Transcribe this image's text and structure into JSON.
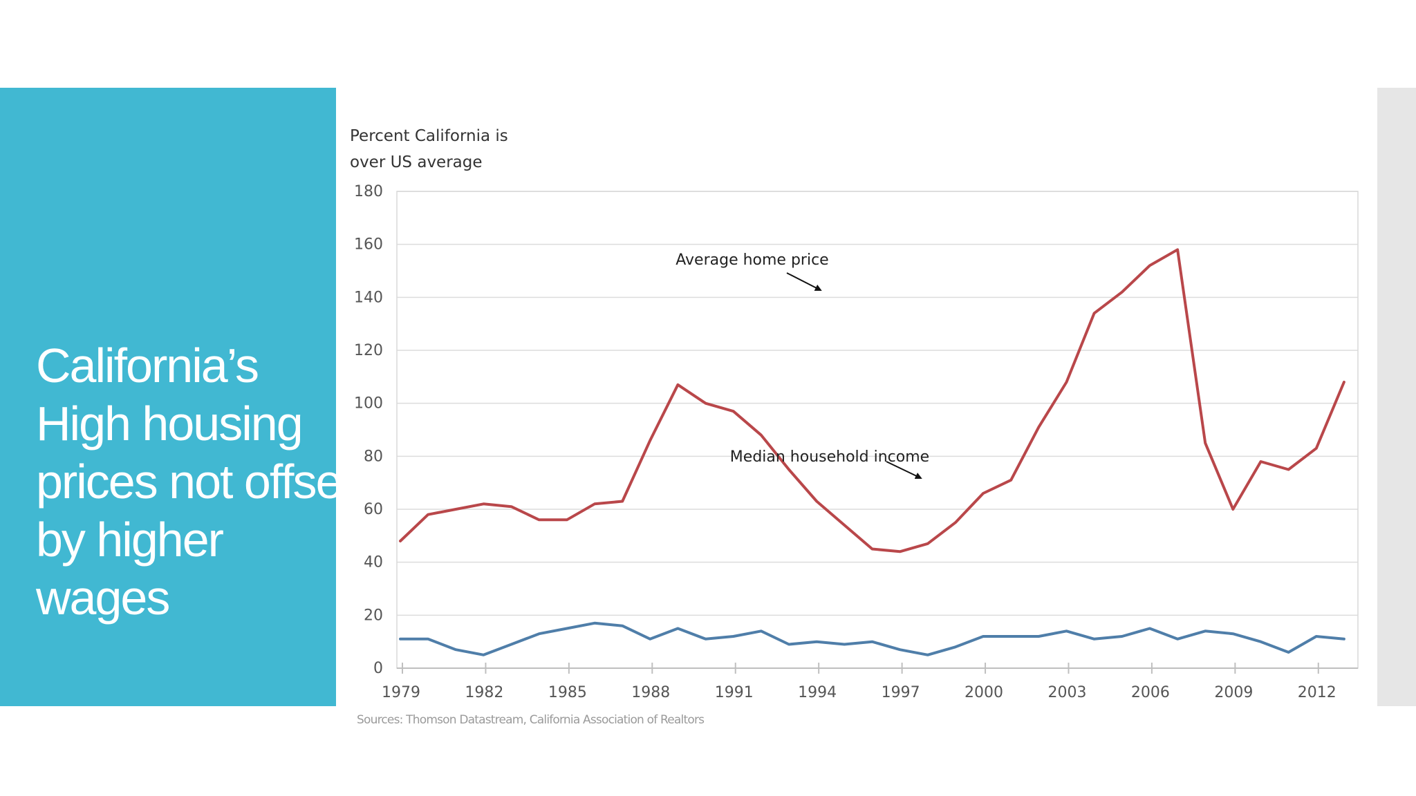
{
  "slide": {
    "title": "California’s\nHigh housing\nprices not offset\nby higher\nwages"
  },
  "chart_data": {
    "type": "line",
    "ylabel": "Percent California is\nover US average",
    "xlabel": "",
    "source": "Sources: Thomson Datastream, California Association of Realtors",
    "ylim": [
      0,
      180
    ],
    "xlim": [
      1979,
      2013.5
    ],
    "yticks": [
      0,
      20,
      40,
      60,
      80,
      100,
      120,
      140,
      160,
      180
    ],
    "xticks": [
      1979,
      1982,
      1985,
      1988,
      1991,
      1994,
      1997,
      2000,
      2003,
      2006,
      2009,
      2012
    ],
    "grid": true,
    "colors": {
      "home_price": "#b9474a",
      "income": "#4f7ea9"
    },
    "series": [
      {
        "key": "home_price",
        "annotation": "Average home price",
        "x": [
          1979,
          1980,
          1981,
          1982,
          1983,
          1984,
          1985,
          1986,
          1987,
          1988,
          1989,
          1990,
          1991,
          1992,
          1993,
          1994,
          1995,
          1996,
          1997,
          1998,
          1999,
          2000,
          2001,
          2002,
          2003,
          2004,
          2005,
          2006,
          2007,
          2008,
          2009,
          2010,
          2011,
          2012,
          2013
        ],
        "values": [
          48,
          58,
          60,
          62,
          61,
          56,
          56,
          62,
          63,
          86,
          107,
          100,
          97,
          88,
          75,
          63,
          54,
          45,
          44,
          47,
          55,
          66,
          71,
          91,
          108,
          134,
          142,
          152,
          158,
          85,
          60,
          78,
          75,
          83,
          108
        ]
      },
      {
        "key": "income",
        "annotation": "Median household income",
        "x": [
          1979,
          1980,
          1981,
          1982,
          1983,
          1984,
          1985,
          1986,
          1987,
          1988,
          1989,
          1990,
          1991,
          1992,
          1993,
          1994,
          1995,
          1996,
          1997,
          1998,
          1999,
          2000,
          2001,
          2002,
          2003,
          2004,
          2005,
          2006,
          2007,
          2008,
          2009,
          2010,
          2011,
          2012,
          2013
        ],
        "values": [
          11,
          11,
          7,
          5,
          9,
          13,
          15,
          17,
          16,
          11,
          15,
          11,
          12,
          14,
          9,
          10,
          9,
          10,
          7,
          5,
          8,
          12,
          12,
          12,
          14,
          11,
          12,
          15,
          11,
          14,
          13,
          10,
          6,
          12,
          11
        ]
      }
    ]
  }
}
